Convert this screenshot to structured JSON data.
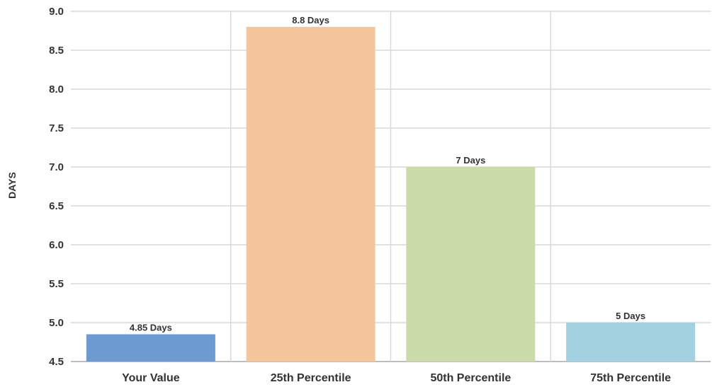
{
  "chart_data": {
    "type": "bar",
    "categories": [
      "Your Value",
      "25th Percentile",
      "50th Percentile",
      "75th Percentile"
    ],
    "values": [
      4.85,
      8.8,
      7,
      5
    ],
    "data_labels": [
      "4.85 Days",
      "8.8 Days",
      "7 Days",
      "5 Days"
    ],
    "bar_colors": [
      "#6d9bd1",
      "#f5c69c",
      "#cbdba8",
      "#a4d1e0"
    ],
    "title": "",
    "xlabel": "",
    "ylabel": "DAYS",
    "ylim": [
      4.5,
      9.0
    ],
    "yticks": [
      "4.5",
      "5.0",
      "5.5",
      "6.0",
      "6.5",
      "7.0",
      "7.5",
      "8.0",
      "8.5",
      "9.0"
    ],
    "grid": true,
    "legend": "none"
  }
}
